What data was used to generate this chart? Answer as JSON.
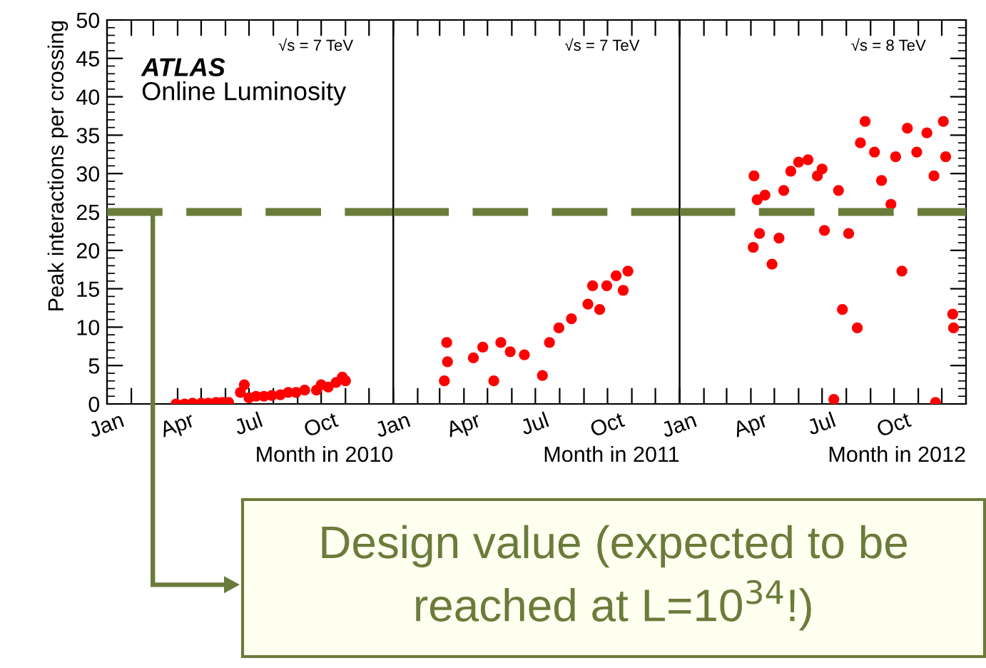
{
  "chart_data": [
    {
      "type": "scatter",
      "ylabel": "Peak interactions per crossing",
      "xlabel": "Month in 2010",
      "annotations": [
        "ATLAS",
        "Online Luminosity",
        "√s = 7 TeV",
        "Design value (expected to be reached at L=10$^{34}$!)"
      ],
      "marker": "circle",
      "grid": false,
      "legend": false,
      "xlim": [
        "2010-01-01",
        "2011-01-01"
      ],
      "ylim": [
        0,
        50
      ],
      "yticks": [
        0,
        5,
        10,
        15,
        20,
        25,
        30,
        35,
        40,
        45,
        50
      ],
      "xticks": [
        {
          "value": "2010-01-01",
          "label": "Jan"
        },
        {
          "value": "2010-02-01",
          "label": null
        },
        {
          "value": "2010-03-01",
          "label": null
        },
        {
          "value": "2010-04-01",
          "label": "Apr"
        },
        {
          "value": "2010-05-01",
          "label": null
        },
        {
          "value": "2010-06-01",
          "label": null
        },
        {
          "value": "2010-07-01",
          "label": "Jul"
        },
        {
          "value": "2010-08-01",
          "label": null
        },
        {
          "value": "2010-09-01",
          "label": null
        },
        {
          "value": "2010-10-01",
          "label": "Oct"
        },
        {
          "value": "2010-11-01",
          "label": null
        },
        {
          "value": "2010-12-01",
          "label": null
        },
        {
          "value": "2011-01-01",
          "label": null
        }
      ],
      "ref_lines": [
        {
          "axis": "y",
          "value": 25,
          "color": "#6b7b3a",
          "line_style": "dashed"
        }
      ],
      "series": [
        {
          "color": "#ff0000",
          "x": [
            "2010-03-30",
            "2010-04-10",
            "2010-04-20",
            "2010-05-01",
            "2010-05-10",
            "2010-05-20",
            "2010-05-28",
            "2010-06-05",
            "2010-06-20",
            "2010-06-25",
            "2010-07-01",
            "2010-07-10",
            "2010-07-20",
            "2010-07-30",
            "2010-08-10",
            "2010-08-20",
            "2010-08-30",
            "2010-09-10",
            "2010-09-25",
            "2010-10-01",
            "2010-10-10",
            "2010-10-20",
            "2010-10-28",
            "2010-11-01"
          ],
          "values": [
            0.0,
            0.0,
            0.1,
            0.1,
            0.1,
            0.2,
            0.2,
            0.2,
            1.5,
            2.5,
            0.8,
            1.0,
            1.0,
            1.1,
            1.2,
            1.5,
            1.5,
            1.8,
            1.8,
            2.5,
            2.2,
            2.8,
            3.5,
            3.0
          ]
        }
      ]
    },
    {
      "type": "scatter",
      "xlabel": "Month in 2011",
      "annotations": [
        "√s = 7 TeV"
      ],
      "marker": "circle",
      "grid": false,
      "legend": false,
      "tick_labels": "x",
      "xlim": [
        "2011-01-01",
        "2012-01-01"
      ],
      "ylim": [
        0,
        50
      ],
      "yticks": [
        0,
        5,
        10,
        15,
        20,
        25,
        30,
        35,
        40,
        45,
        50
      ],
      "xticks": [
        {
          "value": "2011-01-01",
          "label": "Jan"
        },
        {
          "value": "2011-02-01",
          "label": null
        },
        {
          "value": "2011-03-01",
          "label": null
        },
        {
          "value": "2011-04-01",
          "label": "Apr"
        },
        {
          "value": "2011-05-01",
          "label": null
        },
        {
          "value": "2011-06-01",
          "label": null
        },
        {
          "value": "2011-07-01",
          "label": "Jul"
        },
        {
          "value": "2011-08-01",
          "label": null
        },
        {
          "value": "2011-09-01",
          "label": null
        },
        {
          "value": "2011-10-01",
          "label": "Oct"
        },
        {
          "value": "2011-11-01",
          "label": null
        },
        {
          "value": "2011-12-01",
          "label": null
        },
        {
          "value": "2012-01-01",
          "label": null
        }
      ],
      "ref_lines": [
        {
          "axis": "y",
          "value": 25,
          "color": "#6b7b3a",
          "line_style": "dashed"
        }
      ],
      "series": [
        {
          "color": "#ff0000",
          "x": [
            "2011-03-07",
            "2011-03-10",
            "2011-03-11",
            "2011-04-13",
            "2011-04-25",
            "2011-05-09",
            "2011-05-18",
            "2011-05-30",
            "2011-06-17",
            "2011-07-10",
            "2011-07-19",
            "2011-07-31",
            "2011-08-16",
            "2011-09-06",
            "2011-09-12",
            "2011-09-21",
            "2011-09-30",
            "2011-10-12",
            "2011-10-21",
            "2011-10-27"
          ],
          "values": [
            3.0,
            8.0,
            5.5,
            6.0,
            7.4,
            3.0,
            8.0,
            6.8,
            6.4,
            3.7,
            8.0,
            9.9,
            11.1,
            13.0,
            15.4,
            12.3,
            15.4,
            16.7,
            14.8,
            17.3
          ]
        }
      ]
    },
    {
      "type": "scatter",
      "xlabel": "Month in 2012",
      "annotations": [
        "√s = 8 TeV"
      ],
      "marker": "circle",
      "grid": false,
      "legend": false,
      "tick_labels": "x",
      "xlim": [
        "2012-01-01",
        "2013-01-01"
      ],
      "ylim": [
        0,
        50
      ],
      "yticks": [
        0,
        5,
        10,
        15,
        20,
        25,
        30,
        35,
        40,
        45,
        50
      ],
      "xticks": [
        {
          "value": "2012-01-01",
          "label": "Jan"
        },
        {
          "value": "2012-02-01",
          "label": null
        },
        {
          "value": "2012-03-01",
          "label": null
        },
        {
          "value": "2012-04-01",
          "label": "Apr"
        },
        {
          "value": "2012-05-01",
          "label": null
        },
        {
          "value": "2012-06-01",
          "label": null
        },
        {
          "value": "2012-07-01",
          "label": "Jul"
        },
        {
          "value": "2012-08-01",
          "label": null
        },
        {
          "value": "2012-09-01",
          "label": null
        },
        {
          "value": "2012-10-01",
          "label": "Oct"
        },
        {
          "value": "2012-11-01",
          "label": null
        },
        {
          "value": "2012-12-01",
          "label": null
        },
        {
          "value": "2013-01-01",
          "label": null
        }
      ],
      "ref_lines": [
        {
          "axis": "y",
          "value": 25,
          "color": "#6b7b3a",
          "line_style": "dashed"
        }
      ],
      "series": [
        {
          "color": "#ff0000",
          "x": [
            "2012-04-04",
            "2012-04-05",
            "2012-04-09",
            "2012-04-12",
            "2012-04-19",
            "2012-04-28",
            "2012-05-07",
            "2012-05-13",
            "2012-05-22",
            "2012-06-01",
            "2012-06-13",
            "2012-06-25",
            "2012-07-01",
            "2012-07-04",
            "2012-07-16",
            "2012-07-22",
            "2012-07-27",
            "2012-08-04",
            "2012-08-15",
            "2012-08-19",
            "2012-08-25",
            "2012-09-06",
            "2012-09-15",
            "2012-09-27",
            "2012-10-03",
            "2012-10-11",
            "2012-10-18",
            "2012-10-30",
            "2012-11-12",
            "2012-11-21",
            "2012-11-23",
            "2012-12-03",
            "2012-12-06",
            "2012-12-15",
            "2012-12-16"
          ],
          "values": [
            20.4,
            29.7,
            26.6,
            22.2,
            27.2,
            18.2,
            21.6,
            27.8,
            30.3,
            31.5,
            31.8,
            29.7,
            30.6,
            22.6,
            0.6,
            27.8,
            12.3,
            22.2,
            9.9,
            34.0,
            36.8,
            32.8,
            29.1,
            26.0,
            32.2,
            17.3,
            35.9,
            32.8,
            35.3,
            29.7,
            0.2,
            36.8,
            32.2,
            11.7,
            9.9
          ]
        }
      ]
    }
  ]
}
